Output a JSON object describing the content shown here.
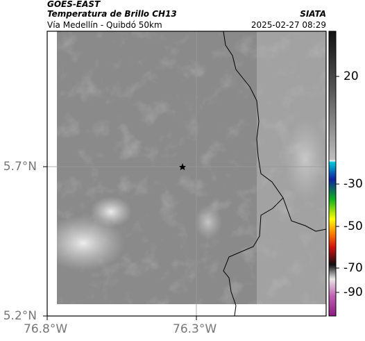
{
  "header": {
    "satellite": "GOES-EAST",
    "product": "Temperatura de Brillo CH13",
    "source": "SIATA",
    "region": "Vía Medellín - Quibdó 50km",
    "timestamp": "2025-02-27 08:29"
  },
  "axes": {
    "lat_ticks": [
      "5.7°N",
      "5.2°N"
    ],
    "lon_ticks": [
      "76.8°W",
      "76.3°W"
    ]
  },
  "colorbar": {
    "ticks": [
      20,
      -30,
      -50,
      -70,
      -90
    ]
  }
}
